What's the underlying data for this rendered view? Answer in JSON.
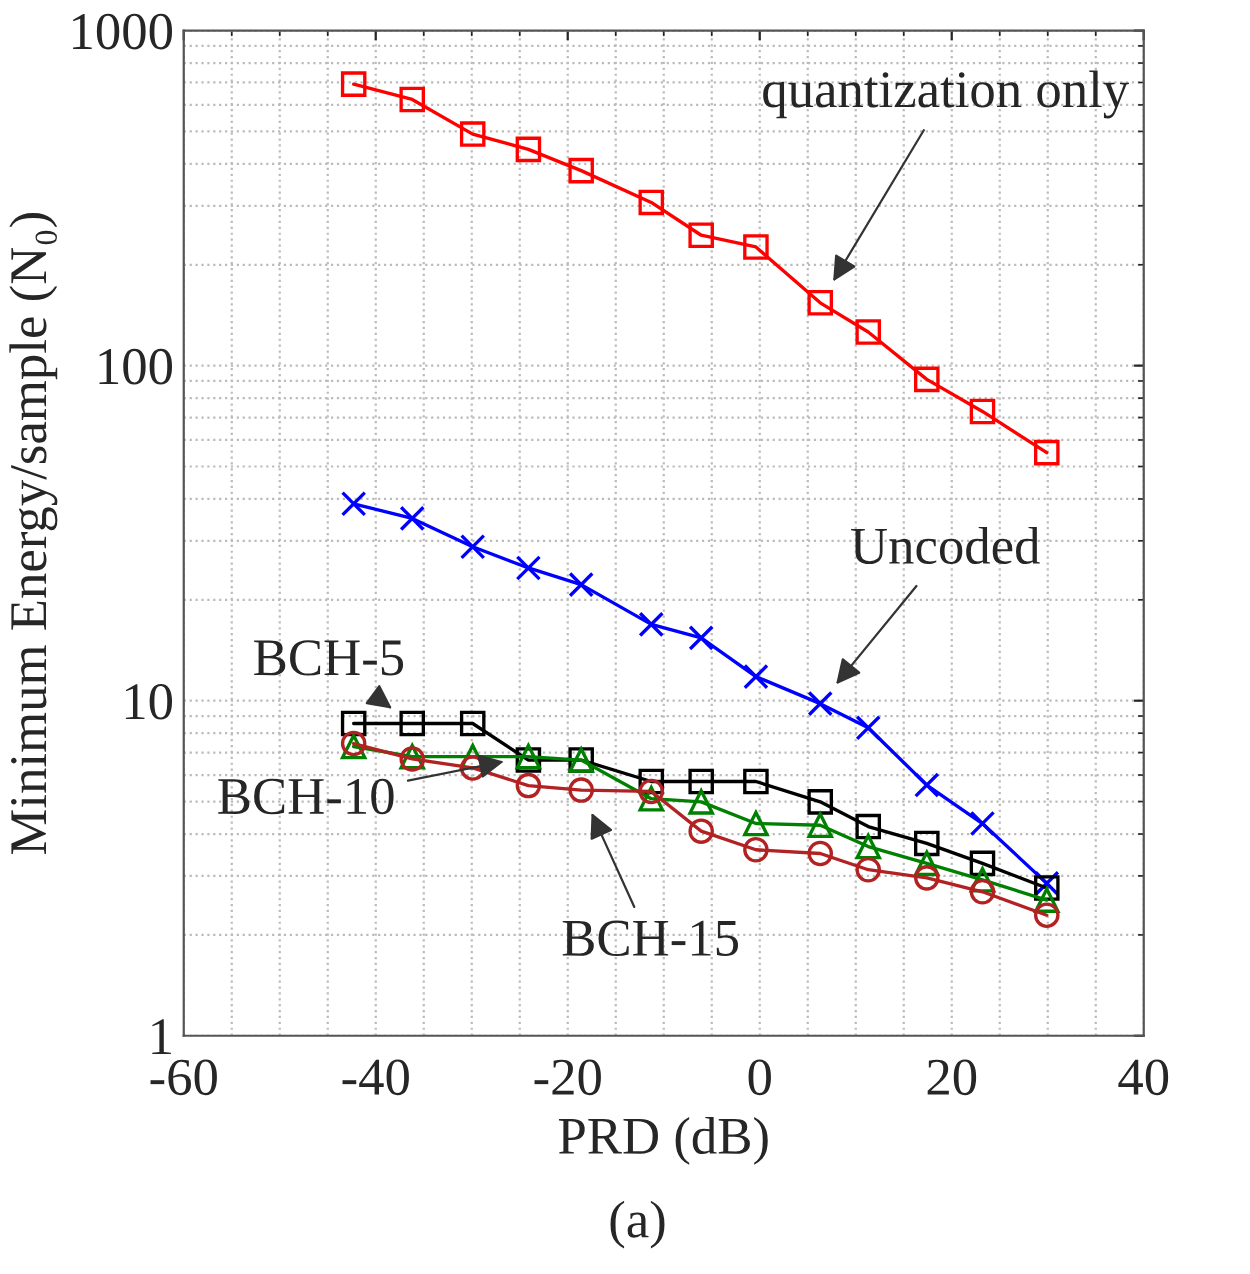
{
  "chart_data": {
    "type": "line",
    "xlabel": "PRD (dB)",
    "ylabel": "Minimum Energy/sample (N₀)",
    "x": [
      -42.3,
      -36.2,
      -29.9,
      -24.1,
      -18.6,
      -11.3,
      -6.1,
      -0.4,
      6.3,
      11.3,
      17.4,
      23.2,
      29.9
    ],
    "series": [
      {
        "name": "quantization only",
        "color": "#ff0000",
        "marker": "square",
        "values": [
          692,
          623,
          491,
          442,
          382,
          307,
          245,
          226,
          154,
          126,
          91,
          73,
          55
        ]
      },
      {
        "name": "Uncoded",
        "color": "#0000ff",
        "marker": "cross",
        "values": [
          38.7,
          35,
          28.8,
          24.9,
          22.2,
          16.9,
          15.4,
          11.8,
          9.8,
          8.3,
          5.6,
          4.3,
          2.85
        ]
      },
      {
        "name": "BCH-5",
        "color": "#000000",
        "marker": "square",
        "values": [
          8.55,
          8.55,
          8.55,
          6.65,
          6.65,
          5.74,
          5.74,
          5.74,
          4.99,
          4.21,
          3.75,
          3.27,
          2.76
        ]
      },
      {
        "name": "BCH-10",
        "color": "#008000",
        "marker": "triangle",
        "values": [
          7.3,
          6.81,
          6.81,
          6.81,
          6.65,
          5.1,
          4.99,
          4.3,
          4.25,
          3.67,
          3.27,
          2.92,
          2.54
        ]
      },
      {
        "name": "BCH-15",
        "color": "#b22222",
        "marker": "circle",
        "values": [
          7.45,
          6.7,
          6.3,
          5.58,
          5.41,
          5.36,
          4.08,
          3.59,
          3.5,
          3.13,
          2.96,
          2.69,
          2.29
        ]
      }
    ],
    "annotations": [
      "(a)"
    ],
    "log": "y",
    "xlim": [
      -60,
      40
    ],
    "ylim": [
      1,
      1000
    ],
    "xticks": [
      -60,
      -40,
      -20,
      0,
      20,
      40
    ],
    "yticks": [
      1,
      10,
      100,
      1000
    ],
    "grid": true,
    "legend": false,
    "line_style": "solid"
  }
}
